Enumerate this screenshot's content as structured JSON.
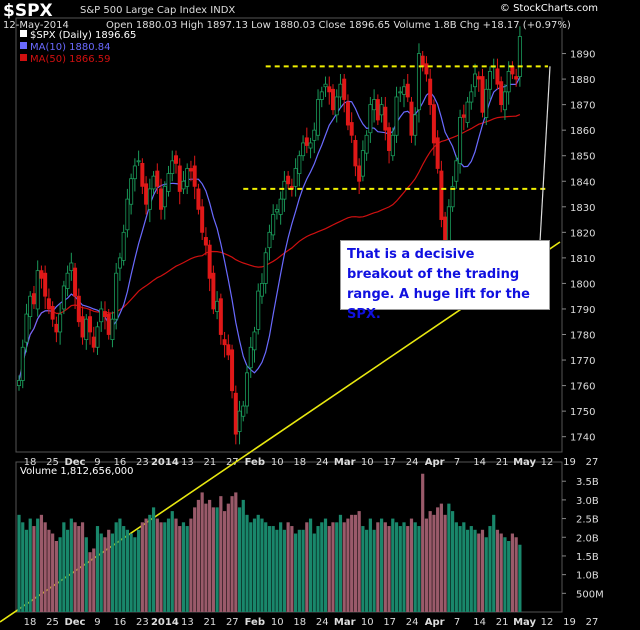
{
  "header": {
    "symbol": "$SPX",
    "description": "S&P 500 Large Cap Index  INDX",
    "date": "12-May-2014",
    "ohlc_line": "Open 1880.03  High 1897.13  Low 1880.03  Close 1896.65  Volume 1.8B  Chg +18.17 (+0.97%)",
    "brand": "© StockCharts.com"
  },
  "annotation": {
    "text": "That is a decisive breakout of the trading range. A huge lift for the SPX."
  },
  "colors": {
    "up": "#1a9a5a",
    "down": "#e01818",
    "ma10": "#6a6aff",
    "ma50": "#d01010",
    "trend": "#e8e810",
    "range": "#f0f000",
    "vol_up": "#19876b",
    "vol_down": "#9a5a6a"
  },
  "chart_data": [
    {
      "type": "candlestick",
      "title": "$SPX (Daily) 1896.65",
      "legend": [
        {
          "name": "$SPX (Daily)",
          "value": "1896.65"
        },
        {
          "name": "MA(10)",
          "value": "1880.84"
        },
        {
          "name": "MA(50)",
          "value": "1866.59"
        }
      ],
      "y_ticks": [
        1740,
        1750,
        1760,
        1770,
        1780,
        1790,
        1800,
        1810,
        1820,
        1830,
        1840,
        1850,
        1860,
        1870,
        1880,
        1890
      ],
      "ylim": [
        1734,
        1900
      ],
      "x_labels": [
        "18",
        "25",
        "Dec",
        "9",
        "16",
        "23",
        "2014",
        "13",
        "21",
        "27",
        "Feb",
        "10",
        "18",
        "24",
        "Mar",
        "10",
        "17",
        "24",
        "Apr",
        "7",
        "14",
        "21",
        "May",
        "12",
        "19",
        "27"
      ],
      "closes": [
        1762,
        1775,
        1788,
        1795,
        1792,
        1805,
        1802,
        1795,
        1790,
        1786,
        1781,
        1788,
        1799,
        1804,
        1808,
        1795,
        1785,
        1779,
        1786,
        1781,
        1775,
        1783,
        1790,
        1787,
        1780,
        1786,
        1804,
        1810,
        1820,
        1833,
        1841,
        1846,
        1848,
        1838,
        1831,
        1837,
        1842,
        1838,
        1829,
        1838,
        1843,
        1848,
        1847,
        1836,
        1840,
        1845,
        1844,
        1838,
        1829,
        1820,
        1815,
        1802,
        1790,
        1793,
        1780,
        1776,
        1772,
        1758,
        1741,
        1750,
        1752,
        1765,
        1775,
        1781,
        1797,
        1800,
        1812,
        1820,
        1827,
        1829,
        1833,
        1840,
        1839,
        1837,
        1845,
        1850,
        1855,
        1854,
        1855,
        1860,
        1872,
        1875,
        1878,
        1875,
        1868,
        1873,
        1878,
        1872,
        1862,
        1858,
        1846,
        1840,
        1852,
        1858,
        1870,
        1872,
        1864,
        1870,
        1860,
        1852,
        1858,
        1873,
        1875,
        1877,
        1873,
        1858,
        1866,
        1890,
        1885,
        1882,
        1870,
        1855,
        1845,
        1825,
        1816,
        1830,
        1838,
        1848,
        1865,
        1865,
        1871,
        1875,
        1882,
        1880,
        1867,
        1876,
        1883,
        1885,
        1878,
        1870,
        1875,
        1883,
        1882,
        1880,
        1896.65
      ],
      "annotations": [
        "breakout above trading range"
      ],
      "trading_range": [
        1837,
        1885
      ]
    },
    {
      "type": "bar",
      "title": "Volume 1,812,656,000",
      "y_ticks": [
        "500M",
        "1.0B",
        "1.5B",
        "2.0B",
        "2.5B",
        "3.0B",
        "3.5B"
      ],
      "ylim": [
        0,
        3.8
      ],
      "unit": "billions of shares",
      "values": [
        2.6,
        2.4,
        2.2,
        2.5,
        2.3,
        2.5,
        2.6,
        2.4,
        2.2,
        2.1,
        1.9,
        2.0,
        2.4,
        2.2,
        2.5,
        2.4,
        2.3,
        2.4,
        2.0,
        1.6,
        1.7,
        2.3,
        2.1,
        2.0,
        2.2,
        2.1,
        2.4,
        2.5,
        2.3,
        2.2,
        2.1,
        2.0,
        2.2,
        2.4,
        2.5,
        2.6,
        2.8,
        2.5,
        2.4,
        2.4,
        2.5,
        2.7,
        2.5,
        2.3,
        2.4,
        2.3,
        2.5,
        2.8,
        3.0,
        3.2,
        2.9,
        3.0,
        2.8,
        2.8,
        3.1,
        2.7,
        2.9,
        3.1,
        3.2,
        2.8,
        3.0,
        2.6,
        2.4,
        2.5,
        2.6,
        2.5,
        2.4,
        2.3,
        2.3,
        2.2,
        2.4,
        2.2,
        2.4,
        2.3,
        2.1,
        2.2,
        2.2,
        2.4,
        2.5,
        2.1,
        2.3,
        2.4,
        2.5,
        2.3,
        2.4,
        2.4,
        2.6,
        2.4,
        2.5,
        2.6,
        2.6,
        2.7,
        2.3,
        2.2,
        2.5,
        2.2,
        2.4,
        2.5,
        2.4,
        2.3,
        2.5,
        2.4,
        2.3,
        2.4,
        2.3,
        2.5,
        2.4,
        2.3,
        3.7,
        2.5,
        2.7,
        2.6,
        2.8,
        2.9,
        2.6,
        2.9,
        2.7,
        2.4,
        2.3,
        2.4,
        2.2,
        2.3,
        2.2,
        2.1,
        2.2,
        2.0,
        2.3,
        2.6,
        2.2,
        2.1,
        2.0,
        1.9,
        2.1,
        2.0,
        1.8
      ]
    }
  ]
}
